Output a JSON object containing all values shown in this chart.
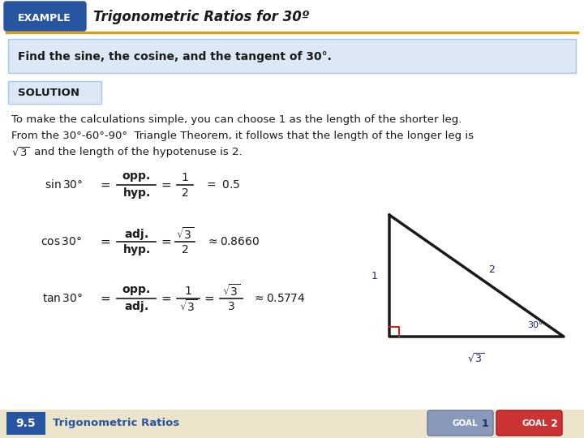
{
  "title": "Trigonometric Ratios for 30º",
  "example_label": "EXAMPLE",
  "example_bg": "#2855a0",
  "example_text_color": "#ffffff",
  "header_line_color": "#d4a017",
  "problem_box_bg": "#dce8f5",
  "problem_box_border": "#a8c8e8",
  "problem_text": "Find the sine, the cosine, and the tangent of 30°.",
  "solution_box_bg": "#dce8f5",
  "solution_label": "SOLUTION",
  "body_text_1": "To make the calculations simple, you can choose 1 as the length of the shorter leg.",
  "body_text_2": "From the 30°-60°-90°  Triangle Theorem, it follows that the length of the longer leg is",
  "body_text_3": " and the length of the hypotenuse is 2.",
  "footer_bg": "#ede4cc",
  "footer_num": "9.5",
  "footer_num_bg": "#2855a0",
  "footer_label": "Trigonometric Ratios",
  "bg_color": "#ffffff",
  "label_color": "#22227a",
  "text_color": "#1a1a1a"
}
